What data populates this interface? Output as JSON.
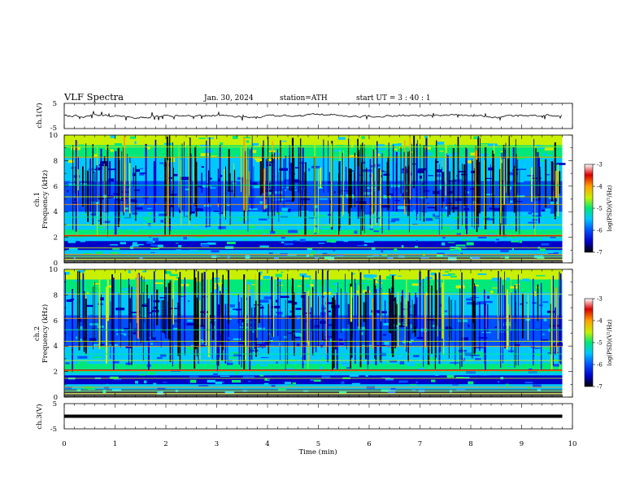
{
  "header": {
    "title": "VLF  Spectra",
    "date": "Jan. 30, 2024",
    "station": "station=ATH",
    "start": "start  UT  =   3  : 40 : 1"
  },
  "chart_data": [
    {
      "type": "line",
      "ylabel": "ch.1(V)",
      "ylim": [
        -5,
        5
      ],
      "yticks": [
        "5",
        "-5"
      ],
      "xlim": [
        0,
        10
      ],
      "baseline": 0,
      "xticks": [
        "0",
        "1",
        "2",
        "3",
        "4",
        "5",
        "6",
        "7",
        "8",
        "9",
        "10"
      ]
    },
    {
      "type": "heatmap",
      "channel_label": "ch.1",
      "ylabel": "Frequency  (kHz)",
      "ylim": [
        0,
        10
      ],
      "yticks": [
        "0",
        "2",
        "4",
        "6",
        "8",
        "10"
      ],
      "xlim": [
        0,
        9.8
      ],
      "colorbar": {
        "label": "log(PSD)(V²/Hz)",
        "range": [
          -7,
          -3
        ],
        "ticks": [
          "-3",
          "-4",
          "-5",
          "-6",
          "-7"
        ]
      },
      "spectral_lines_khz": [
        0.3,
        0.5,
        0.7,
        1.2,
        2.1,
        2.2,
        3.0,
        3.6,
        4.6,
        5.2,
        6.1,
        8.3,
        9.1
      ]
    },
    {
      "type": "heatmap",
      "channel_label": "ch.2",
      "ylabel": "Frequency  (kHz)",
      "ylim": [
        0,
        10
      ],
      "yticks": [
        "0",
        "2",
        "4",
        "6",
        "8",
        "10"
      ],
      "xlim": [
        0,
        9.8
      ],
      "colorbar": {
        "label": "log(PSD)(V²/Hz)",
        "range": [
          -7,
          -3
        ],
        "ticks": [
          "-3",
          "-4",
          "-5",
          "-6",
          "-7"
        ]
      },
      "spectral_lines_khz": [
        0.3,
        0.5,
        0.8,
        1.5,
        2.0,
        2.1,
        2.9,
        3.4,
        4.0,
        4.4,
        5.3,
        6.2,
        8.1
      ]
    },
    {
      "type": "line",
      "ylabel": "ch.3(V)",
      "ylim": [
        -5,
        5
      ],
      "yticks": [
        "5",
        "-5"
      ],
      "xlim": [
        0,
        10
      ],
      "baseline": 0,
      "xlabel": "Time  (min)",
      "xticks": [
        "0",
        "1",
        "2",
        "3",
        "4",
        "5",
        "6",
        "7",
        "8",
        "9",
        "10"
      ]
    }
  ],
  "colors": {
    "colormap": [
      "#000000",
      "#0000c8",
      "#0050ff",
      "#00c8ff",
      "#00e87a",
      "#c8f000",
      "#ffa000",
      "#d80000",
      "#ffffff"
    ]
  }
}
